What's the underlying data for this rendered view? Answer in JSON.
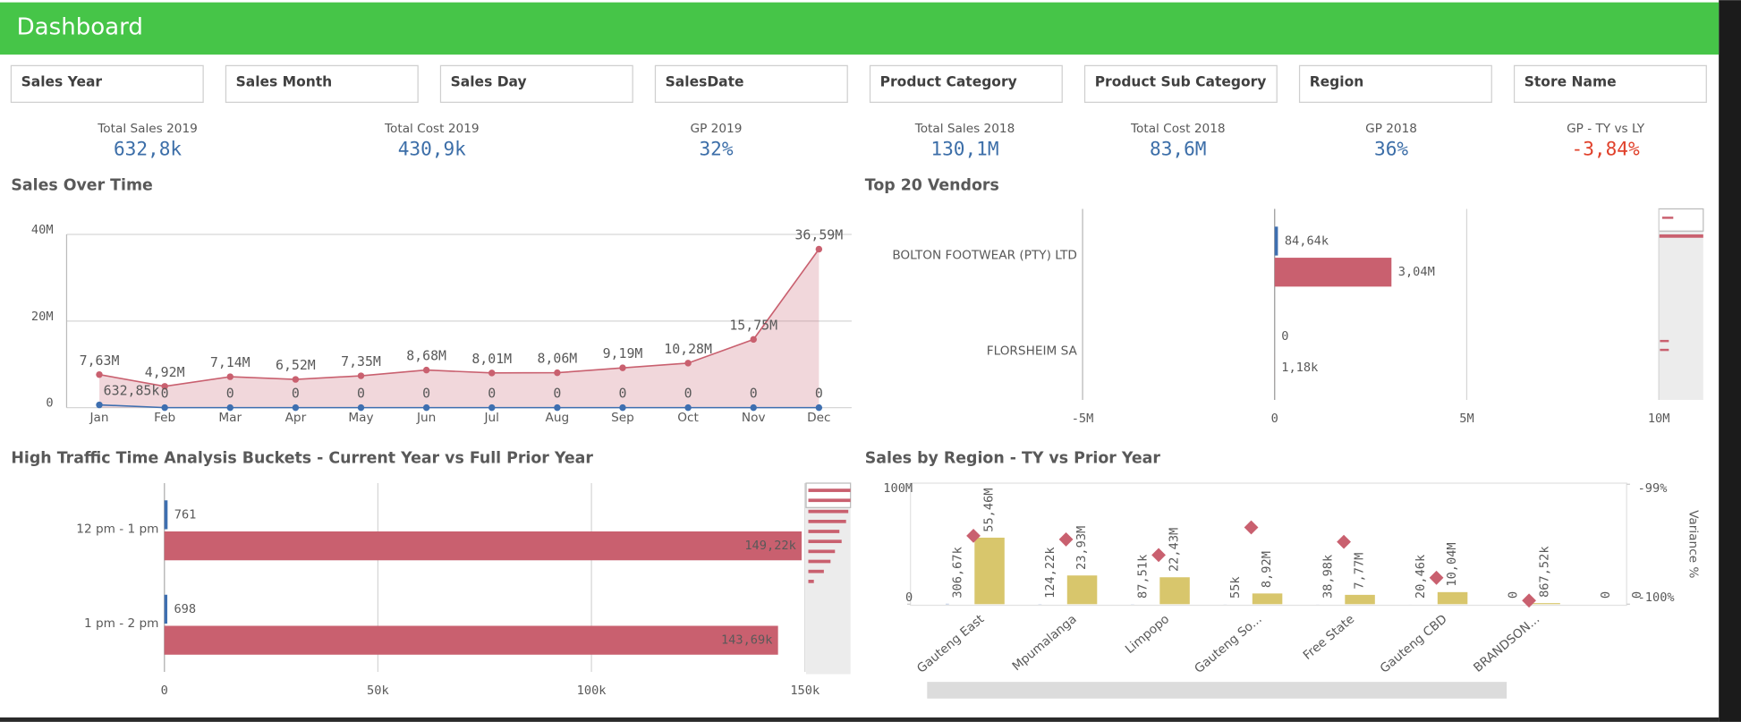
{
  "header": {
    "title": "Dashboard"
  },
  "filters": [
    "Sales Year",
    "Sales Month",
    "Sales Day",
    "SalesDate",
    "Product Category",
    "Product Sub Category",
    "Region",
    "Store Name"
  ],
  "kpis": [
    {
      "label": "Total Sales 2019",
      "value": "632,8k",
      "color": "#3c6ea8"
    },
    {
      "label": "Total Cost 2019",
      "value": "430,9k",
      "color": "#3c6ea8"
    },
    {
      "label": "GP 2019",
      "value": "32%",
      "color": "#3c6ea8"
    },
    {
      "label": "Total Sales 2018",
      "value": "130,1M",
      "color": "#3c6ea8"
    },
    {
      "label": "Total Cost 2018",
      "value": "83,6M",
      "color": "#3c6ea8"
    },
    {
      "label": "GP 2018",
      "value": "36%",
      "color": "#3c6ea8"
    },
    {
      "label": "GP - TY vs LY",
      "value": "-3,84%",
      "color": "#e0402a"
    }
  ],
  "chart_data": [
    {
      "type": "line",
      "title": "Sales Over Time",
      "categories": [
        "Jan",
        "Feb",
        "Mar",
        "Apr",
        "May",
        "Jun",
        "Jul",
        "Aug",
        "Sep",
        "Oct",
        "Nov",
        "Dec"
      ],
      "series": [
        {
          "color": "#c9606f",
          "area": true,
          "values": [
            7630000,
            4920000,
            7140000,
            6520000,
            7350000,
            8680000,
            8010000,
            8060000,
            9190000,
            10280000,
            15750000,
            36590000
          ],
          "value_labels": [
            "7,63M",
            "4,92M",
            "7,14M",
            "6,52M",
            "7,35M",
            "8,68M",
            "8,01M",
            "8,06M",
            "9,19M",
            "10,28M",
            "15,75M",
            "36,59M"
          ]
        },
        {
          "color": "#3e6fb0",
          "values": [
            632850,
            0,
            0,
            0,
            0,
            0,
            0,
            0,
            0,
            0,
            0,
            0
          ],
          "value_labels": [
            "632,85k",
            "0",
            "0",
            "0",
            "0",
            "0",
            "0",
            "0",
            "0",
            "0",
            "0",
            "0"
          ]
        }
      ],
      "ylim": [
        0,
        40000000
      ],
      "yticks": [
        0,
        {
          "value": 20000000,
          "label": "20M"
        },
        {
          "value": 40000000,
          "label": "40M"
        }
      ],
      "grid": true
    },
    {
      "type": "bar",
      "orientation": "horizontal",
      "title": "Top 20 Vendors",
      "categories": [
        "BOLTON FOOTWEAR (PTY) LTD",
        "FLORSHEIM SA"
      ],
      "series": [
        {
          "color": "#3e6fb0",
          "values": [
            84640,
            0
          ],
          "value_labels": [
            "84,64k",
            "0"
          ]
        },
        {
          "color": "#c9606f",
          "values": [
            3040000,
            1180
          ],
          "value_labels": [
            "3,04M",
            "1,18k"
          ]
        }
      ],
      "xlim": [
        -5000000,
        10000000
      ],
      "xticks": [
        {
          "value": -5000000,
          "label": "-5M"
        },
        0,
        {
          "value": 5000000,
          "label": "5M"
        },
        {
          "value": 10000000,
          "label": "10M"
        }
      ],
      "grid": true
    },
    {
      "type": "bar",
      "orientation": "horizontal",
      "title": "High Traffic Time Analysis Buckets - Current Year vs Full Prior Year",
      "categories": [
        "12 pm - 1 pm",
        "1 pm - 2 pm"
      ],
      "series": [
        {
          "color": "#3e6fb0",
          "values": [
            761,
            698
          ]
        },
        {
          "color": "#c9606f",
          "values": [
            149220,
            143690
          ],
          "value_labels": [
            "149,22k",
            "143,69k"
          ]
        }
      ],
      "xlim": [
        0,
        150000
      ],
      "xticks": [
        0,
        {
          "value": 50000,
          "label": "50k"
        },
        {
          "value": 100000,
          "label": "100k"
        },
        {
          "value": 150000,
          "label": "150k"
        }
      ],
      "grid": true
    },
    {
      "type": "combo",
      "title": "Sales by Region - TY vs Prior Year",
      "categories": [
        "Gauteng East",
        "Mpumalanga",
        "Limpopo",
        "Gauteng So...",
        "Free State",
        "Gauteng CBD",
        "BRANDSON...",
        null
      ],
      "series": [
        {
          "type": "bar",
          "color": "#6f8fc4",
          "values": [
            306670,
            124220,
            87510,
            55000,
            38980,
            20460,
            0,
            0
          ],
          "value_labels": [
            "306,67k",
            "124,22k",
            "87,51k",
            "55k",
            "38,98k",
            "20,46k",
            "0",
            "0"
          ]
        },
        {
          "type": "bar",
          "color": "#d8c66c",
          "values": [
            55460000,
            23930000,
            22430000,
            8920000,
            7770000,
            10040000,
            867520,
            0
          ],
          "value_labels": [
            "55,46M",
            "23,93M",
            "22,43M",
            "8,92M",
            "7,77M",
            "10,04M",
            "867,52k",
            "0"
          ]
        },
        {
          "type": "scatter",
          "axis": "y2",
          "color": "#c9606f",
          "values": [
            -99.43,
            -99.46,
            -99.59,
            -99.36,
            -99.48,
            -99.78,
            -99.97,
            null
          ]
        }
      ],
      "ylim": [
        0,
        100000000
      ],
      "yticks": [
        0,
        {
          "value": 100000000,
          "label": "100M"
        }
      ],
      "y2lim": [
        -100,
        -99
      ],
      "y2ticks": [
        {
          "value": -100,
          "label": "-100%"
        },
        {
          "value": -99,
          "label": "-99%"
        }
      ],
      "y2label": "Variance %"
    }
  ]
}
